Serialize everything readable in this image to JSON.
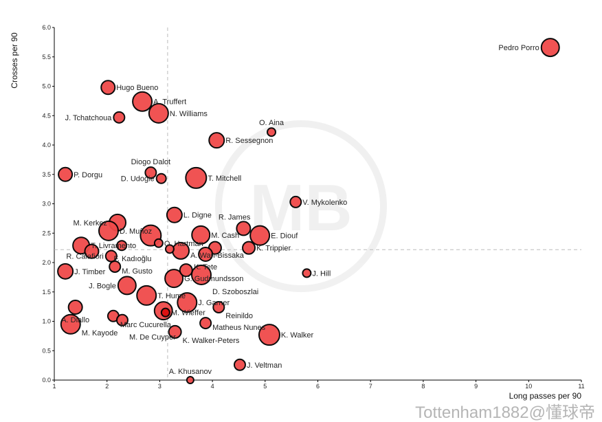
{
  "chart_data": {
    "type": "scatter",
    "title": "",
    "xlabel": "Long passes per 90",
    "ylabel": "Crosses per 90",
    "xlim": [
      1,
      11
    ],
    "ylim": [
      0,
      6
    ],
    "xticks": [
      "1",
      "2",
      "3",
      "4",
      "5",
      "6",
      "7",
      "8",
      "9",
      "10",
      "11"
    ],
    "yticks": [
      "0.0",
      "0.5",
      "1.0",
      "1.5",
      "2.0",
      "2.5",
      "3.0",
      "3.5",
      "4.0",
      "4.5",
      "5.0",
      "5.5",
      "6.0"
    ],
    "reference_lines": {
      "x_mean": 3.15,
      "y_mean": 2.22
    },
    "colors": {
      "point": "#f04a4a",
      "highlight": "#dd0f0f",
      "edge": "#000000",
      "refline": "#bbbbbb"
    },
    "points": [
      {
        "name": "Pedro Porro",
        "x": 10.41,
        "y": 5.66,
        "size": 13,
        "label_pos": "left"
      },
      {
        "name": "Hugo Bueno",
        "x": 2.02,
        "y": 4.98,
        "size": 10,
        "label_pos": "right"
      },
      {
        "name": "A. Truffert",
        "x": 2.67,
        "y": 4.74,
        "size": 14,
        "label_pos": "right"
      },
      {
        "name": "N. Williams",
        "x": 2.98,
        "y": 4.54,
        "size": 14,
        "label_pos": "right"
      },
      {
        "name": "J. Tchatchoua",
        "x": 2.23,
        "y": 4.47,
        "size": 8,
        "label_pos": "left"
      },
      {
        "name": "O. Aina",
        "x": 5.12,
        "y": 4.22,
        "size": 6,
        "label_pos": "above"
      },
      {
        "name": "R. Sessegnon",
        "x": 4.08,
        "y": 4.08,
        "size": 11,
        "label_pos": "right"
      },
      {
        "name": "Diogo Dalot",
        "x": 2.83,
        "y": 3.53,
        "size": 8,
        "label_pos": "above"
      },
      {
        "name": "D. Udogie",
        "x": 3.03,
        "y": 3.43,
        "size": 7,
        "label_pos": "left"
      },
      {
        "name": "T. Mitchell",
        "x": 3.69,
        "y": 3.44,
        "size": 15,
        "label_pos": "right"
      },
      {
        "name": "P. Dorgu",
        "x": 1.21,
        "y": 3.5,
        "size": 10,
        "label_pos": "right"
      },
      {
        "name": "V. Mykolenko",
        "x": 5.58,
        "y": 3.03,
        "size": 8,
        "label_pos": "right"
      },
      {
        "name": "L. Digne",
        "x": 3.28,
        "y": 2.81,
        "size": 11,
        "label_pos": "right"
      },
      {
        "name": "R. James",
        "x": 4.59,
        "y": 2.58,
        "size": 10,
        "label_pos": "aboveleft"
      },
      {
        "name": "E. Diouf",
        "x": 4.9,
        "y": 2.46,
        "size": 14,
        "label_pos": "right"
      },
      {
        "name": "M. Kerkez",
        "x": 2.2,
        "y": 2.68,
        "size": 12,
        "label_pos": "left"
      },
      {
        "name": "D. Muñoz",
        "x": 2.03,
        "y": 2.54,
        "size": 14,
        "label_pos": "right"
      },
      {
        "name": "",
        "x": 2.83,
        "y": 2.46,
        "size": 15,
        "label_pos": "right"
      },
      {
        "name": "O. Hartman",
        "x": 2.98,
        "y": 2.33,
        "size": 6,
        "label_pos": "right"
      },
      {
        "name": "M. Cash",
        "x": 3.78,
        "y": 2.47,
        "size": 13,
        "label_pos": "right"
      },
      {
        "name": "A. Wan-Bissaka",
        "x": 3.4,
        "y": 2.2,
        "size": 12,
        "label_pos": "right"
      },
      {
        "name": "",
        "x": 3.19,
        "y": 2.23,
        "size": 6,
        "label_pos": "right"
      },
      {
        "name": "",
        "x": 4.05,
        "y": 2.25,
        "size": 9,
        "label_pos": "right"
      },
      {
        "name": "K. Trippier",
        "x": 4.69,
        "y": 2.25,
        "size": 9,
        "label_pos": "right"
      },
      {
        "name": "K. Tete",
        "x": 3.87,
        "y": 2.14,
        "size": 10,
        "label_pos": "below"
      },
      {
        "name": "T. Livramento",
        "x": 1.51,
        "y": 2.29,
        "size": 12,
        "label_pos": "right"
      },
      {
        "name": "",
        "x": 1.71,
        "y": 2.19,
        "size": 10,
        "label_pos": "right"
      },
      {
        "name": "",
        "x": 2.28,
        "y": 2.29,
        "size": 7,
        "label_pos": "right"
      },
      {
        "name": "R. Calafiori",
        "x": 2.08,
        "y": 2.11,
        "size": 8,
        "label_pos": "left"
      },
      {
        "name": "F. Kadıoğlu",
        "x": 2.1,
        "y": 2.07,
        "size": 0,
        "label_pos": "right"
      },
      {
        "name": "M. Gusto",
        "x": 2.15,
        "y": 1.93,
        "size": 8,
        "label_pos": "right"
      },
      {
        "name": "J. Timber",
        "x": 1.21,
        "y": 1.85,
        "size": 11,
        "label_pos": "right"
      },
      {
        "name": "J. Bogle",
        "x": 2.38,
        "y": 1.61,
        "size": 13,
        "label_pos": "left"
      },
      {
        "name": "T. Hume",
        "x": 2.75,
        "y": 1.44,
        "size": 14,
        "label_pos": "right"
      },
      {
        "name": "G. Gudmundsson",
        "x": 3.27,
        "y": 1.73,
        "size": 13,
        "label_pos": "right"
      },
      {
        "name": "",
        "x": 3.5,
        "y": 1.87,
        "size": 9,
        "label_pos": "right"
      },
      {
        "name": "D. Szoboszlai",
        "x": 3.79,
        "y": 1.79,
        "size": 14,
        "label_pos": "right"
      },
      {
        "name": "J. Hill",
        "x": 5.79,
        "y": 1.82,
        "size": 6,
        "label_pos": "right"
      },
      {
        "name": "J. Garner",
        "x": 3.52,
        "y": 1.32,
        "size": 14,
        "label_pos": "right"
      },
      {
        "name": "Reinildo",
        "x": 4.12,
        "y": 1.24,
        "size": 8,
        "label_pos": "right"
      },
      {
        "name": "",
        "x": 3.07,
        "y": 1.18,
        "size": 13,
        "label_pos": "right"
      },
      {
        "name": "M. Wieffer",
        "x": 3.11,
        "y": 1.15,
        "size": 6,
        "label_pos": "right",
        "highlight": true
      },
      {
        "name": "A. Diallo",
        "x": 1.4,
        "y": 1.24,
        "size": 10,
        "label_pos": "below"
      },
      {
        "name": "M. Kayode",
        "x": 1.31,
        "y": 0.95,
        "size": 14,
        "label_pos": "right"
      },
      {
        "name": "Marc Cucurella",
        "x": 2.12,
        "y": 1.09,
        "size": 8,
        "label_pos": "right"
      },
      {
        "name": "M. De Cuyper",
        "x": 2.29,
        "y": 1.02,
        "size": 8,
        "label_pos": "right"
      },
      {
        "name": "Matheus Nunes",
        "x": 3.87,
        "y": 0.97,
        "size": 8,
        "label_pos": "right"
      },
      {
        "name": "K. Walker-Peters",
        "x": 3.29,
        "y": 0.82,
        "size": 9,
        "label_pos": "right"
      },
      {
        "name": "K. Walker",
        "x": 5.08,
        "y": 0.77,
        "size": 15,
        "label_pos": "right"
      },
      {
        "name": "J. Veltman",
        "x": 4.52,
        "y": 0.26,
        "size": 8,
        "label_pos": "right"
      },
      {
        "name": "A. Khusanov",
        "x": 3.58,
        "y": 0.0,
        "size": 5,
        "label_pos": "above"
      }
    ]
  },
  "watermark": {
    "logo_text": "MB",
    "credit": "Tottenham1882@懂球帝"
  }
}
